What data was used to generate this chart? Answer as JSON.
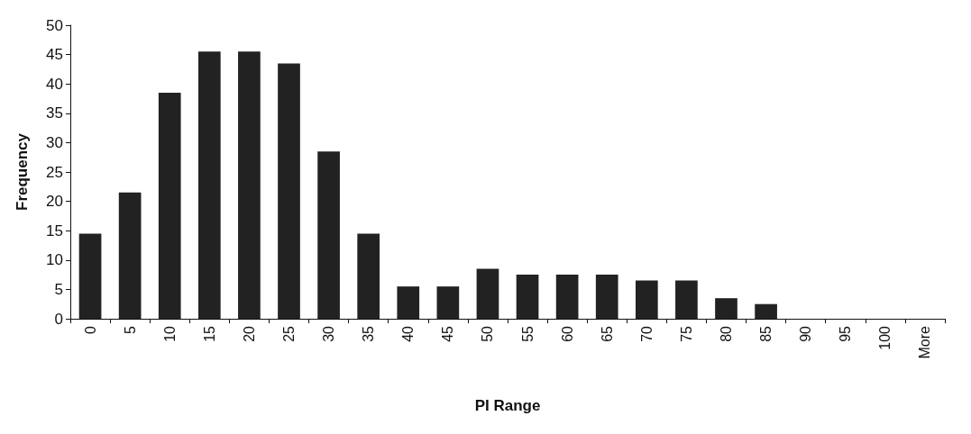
{
  "chart_data": {
    "type": "bar",
    "xlabel": "PI Range",
    "ylabel": "Frequency",
    "categories": [
      "0",
      "5",
      "10",
      "15",
      "20",
      "25",
      "30",
      "35",
      "40",
      "45",
      "50",
      "55",
      "60",
      "65",
      "70",
      "75",
      "80",
      "85",
      "90",
      "95",
      "100",
      "More"
    ],
    "values": [
      14.5,
      21.5,
      38.5,
      45.5,
      45.5,
      43.5,
      28.5,
      14.5,
      5.5,
      5.5,
      8.5,
      7.5,
      7.5,
      7.5,
      6.5,
      6.5,
      3.5,
      2.5,
      0,
      0,
      0,
      0
    ],
    "color": "#222222",
    "ylim": [
      0,
      50
    ],
    "yticks": [
      0,
      5,
      10,
      15,
      20,
      25,
      30,
      35,
      40,
      45,
      50
    ],
    "grid": false
  }
}
